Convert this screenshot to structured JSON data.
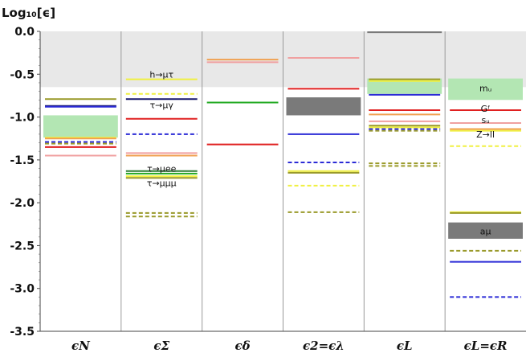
{
  "chart_data": {
    "type": "bar",
    "ylabel": "Log₁₀[ϵ]",
    "ylim": [
      -3.5,
      0.0
    ],
    "yticks": [
      "0.0",
      "-0.5",
      "-1.0",
      "-1.5",
      "-2.0",
      "-2.5",
      "-3.0",
      "-3.5"
    ],
    "ytick_values": [
      0.0,
      -0.5,
      -1.0,
      -1.5,
      -2.0,
      -2.5,
      -3.0,
      -3.5
    ],
    "excluded_band": [
      -0.65,
      0.0
    ],
    "colors": {
      "excluded": "#e8e8e8",
      "olive": "#9a9a2a",
      "navy": "#1a1a6e",
      "blue": "#2b2bd6",
      "red": "#e02020",
      "pink": "#f0a0a0",
      "orange": "#f0a050",
      "yellow": "#f0f040",
      "green": "#22aa22",
      "darkgreen": "#2e7d32",
      "lightgreen": "#b3e6b3",
      "gray": "#7a7a7a"
    },
    "categories": [
      "ϵN",
      "ϵΣ",
      "ϵδ",
      "ϵ2=ϵλ",
      "ϵL",
      "ϵL=ϵR"
    ],
    "bounds": [
      {
        "cat": 0,
        "y": -0.79,
        "color": "olive",
        "style": "solid"
      },
      {
        "cat": 0,
        "y": -0.87,
        "color": "navy",
        "style": "solid"
      },
      {
        "cat": 0,
        "y": -0.88,
        "color": "blue",
        "style": "solid"
      },
      {
        "cat": 0,
        "y": -1.24,
        "color": "yellow",
        "style": "solid"
      },
      {
        "cat": 0,
        "y": -1.25,
        "color": "orange",
        "style": "solid"
      },
      {
        "cat": 0,
        "y": -1.29,
        "color": "blue",
        "style": "dashed"
      },
      {
        "cat": 0,
        "y": -1.31,
        "color": "olive",
        "style": "dashed"
      },
      {
        "cat": 0,
        "y": -1.35,
        "color": "red",
        "style": "solid"
      },
      {
        "cat": 0,
        "y": -1.45,
        "color": "pink",
        "style": "solid"
      },
      {
        "cat": 1,
        "y": -0.56,
        "color": "yellow",
        "style": "solid"
      },
      {
        "cat": 1,
        "y": -0.73,
        "color": "yellow",
        "style": "dashed"
      },
      {
        "cat": 1,
        "y": -0.79,
        "color": "navy",
        "style": "solid"
      },
      {
        "cat": 1,
        "y": -1.02,
        "color": "red",
        "style": "solid"
      },
      {
        "cat": 1,
        "y": -1.2,
        "color": "blue",
        "style": "dashed"
      },
      {
        "cat": 1,
        "y": -1.42,
        "color": "pink",
        "style": "solid"
      },
      {
        "cat": 1,
        "y": -1.45,
        "color": "orange",
        "style": "solid"
      },
      {
        "cat": 1,
        "y": -1.63,
        "color": "darkgreen",
        "style": "solid"
      },
      {
        "cat": 1,
        "y": -1.66,
        "color": "green",
        "style": "solid"
      },
      {
        "cat": 1,
        "y": -1.69,
        "color": "yellow",
        "style": "solid"
      },
      {
        "cat": 1,
        "y": -1.71,
        "color": "olive",
        "style": "solid"
      },
      {
        "cat": 1,
        "y": -2.12,
        "color": "olive",
        "style": "dashed"
      },
      {
        "cat": 1,
        "y": -2.16,
        "color": "olive",
        "style": "dashed"
      },
      {
        "cat": 2,
        "y": -0.33,
        "color": "orange",
        "style": "solid"
      },
      {
        "cat": 2,
        "y": -0.36,
        "color": "pink",
        "style": "solid"
      },
      {
        "cat": 2,
        "y": -0.83,
        "color": "green",
        "style": "solid"
      },
      {
        "cat": 2,
        "y": -1.32,
        "color": "red",
        "style": "solid"
      },
      {
        "cat": 3,
        "y": -0.31,
        "color": "pink",
        "style": "solid"
      },
      {
        "cat": 3,
        "y": -0.67,
        "color": "red",
        "style": "solid"
      },
      {
        "cat": 3,
        "y": -1.2,
        "color": "blue",
        "style": "solid"
      },
      {
        "cat": 3,
        "y": -1.53,
        "color": "blue",
        "style": "dashed"
      },
      {
        "cat": 3,
        "y": -1.63,
        "color": "yellow",
        "style": "solid"
      },
      {
        "cat": 3,
        "y": -1.65,
        "color": "olive",
        "style": "solid"
      },
      {
        "cat": 3,
        "y": -1.8,
        "color": "yellow",
        "style": "dashed"
      },
      {
        "cat": 3,
        "y": -2.11,
        "color": "olive",
        "style": "dashed"
      },
      {
        "cat": 4,
        "y": -0.56,
        "color": "olive",
        "style": "solid"
      },
      {
        "cat": 4,
        "y": -0.58,
        "color": "yellow",
        "style": "solid"
      },
      {
        "cat": 4,
        "y": -0.74,
        "color": "blue",
        "style": "solid"
      },
      {
        "cat": 4,
        "y": -0.92,
        "color": "red",
        "style": "solid"
      },
      {
        "cat": 4,
        "y": -0.97,
        "color": "orange",
        "style": "solid"
      },
      {
        "cat": 4,
        "y": -1.05,
        "color": "pink",
        "style": "solid"
      },
      {
        "cat": 4,
        "y": -1.1,
        "color": "olive",
        "style": "solid"
      },
      {
        "cat": 4,
        "y": -1.12,
        "color": "yellow",
        "style": "solid"
      },
      {
        "cat": 4,
        "y": -1.14,
        "color": "blue",
        "style": "dashed"
      },
      {
        "cat": 4,
        "y": -1.16,
        "color": "olive",
        "style": "dashed"
      },
      {
        "cat": 4,
        "y": -1.54,
        "color": "olive",
        "style": "dashed"
      },
      {
        "cat": 4,
        "y": -1.57,
        "color": "olive",
        "style": "dashed"
      },
      {
        "cat": 5,
        "y": -0.92,
        "color": "red",
        "style": "solid"
      },
      {
        "cat": 5,
        "y": -1.07,
        "color": "pink",
        "style": "solid"
      },
      {
        "cat": 5,
        "y": -1.14,
        "color": "orange",
        "style": "solid"
      },
      {
        "cat": 5,
        "y": -1.16,
        "color": "yellow",
        "style": "solid"
      },
      {
        "cat": 5,
        "y": -1.34,
        "color": "yellow",
        "style": "dashed"
      },
      {
        "cat": 5,
        "y": -2.11,
        "color": "yellow",
        "style": "solid"
      },
      {
        "cat": 5,
        "y": -2.12,
        "color": "olive",
        "style": "solid"
      },
      {
        "cat": 5,
        "y": -2.56,
        "color": "olive",
        "style": "dashed"
      },
      {
        "cat": 5,
        "y": -2.69,
        "color": "blue",
        "style": "solid"
      },
      {
        "cat": 5,
        "y": -3.1,
        "color": "blue",
        "style": "dashed"
      }
    ],
    "regions": [
      {
        "cat": 0,
        "y_top": -0.98,
        "y_bottom": -1.24,
        "color": "lightgreen"
      },
      {
        "cat": 3,
        "y_top": -0.77,
        "y_bottom": -0.98,
        "color": "gray"
      },
      {
        "cat": 4,
        "y_top": -0.55,
        "y_bottom": -0.73,
        "color": "lightgreen"
      },
      {
        "cat": 4,
        "y_top": 0.0,
        "y_bottom": -0.02,
        "color": "gray"
      },
      {
        "cat": 5,
        "y_top": -0.55,
        "y_bottom": -0.8,
        "color": "lightgreen"
      },
      {
        "cat": 5,
        "y_top": -2.23,
        "y_bottom": -2.42,
        "color": "gray"
      }
    ],
    "annotations": [
      {
        "cat": 1,
        "y": -0.5,
        "text": "h→μτ"
      },
      {
        "cat": 1,
        "y": -0.86,
        "text": "τ→μγ"
      },
      {
        "cat": 1,
        "y": -1.6,
        "text": "τ→μee"
      },
      {
        "cat": 1,
        "y": -1.77,
        "text": "τ→μμμ"
      },
      {
        "cat": 5,
        "y": -0.66,
        "text": "mᵤ"
      },
      {
        "cat": 5,
        "y": -0.9,
        "text": "Gᶠ"
      },
      {
        "cat": 5,
        "y": -1.03,
        "text": "sᵤ"
      },
      {
        "cat": 5,
        "y": -1.2,
        "text": "Z→ll"
      },
      {
        "cat": 5,
        "y": -2.33,
        "text": "aμ"
      }
    ]
  }
}
